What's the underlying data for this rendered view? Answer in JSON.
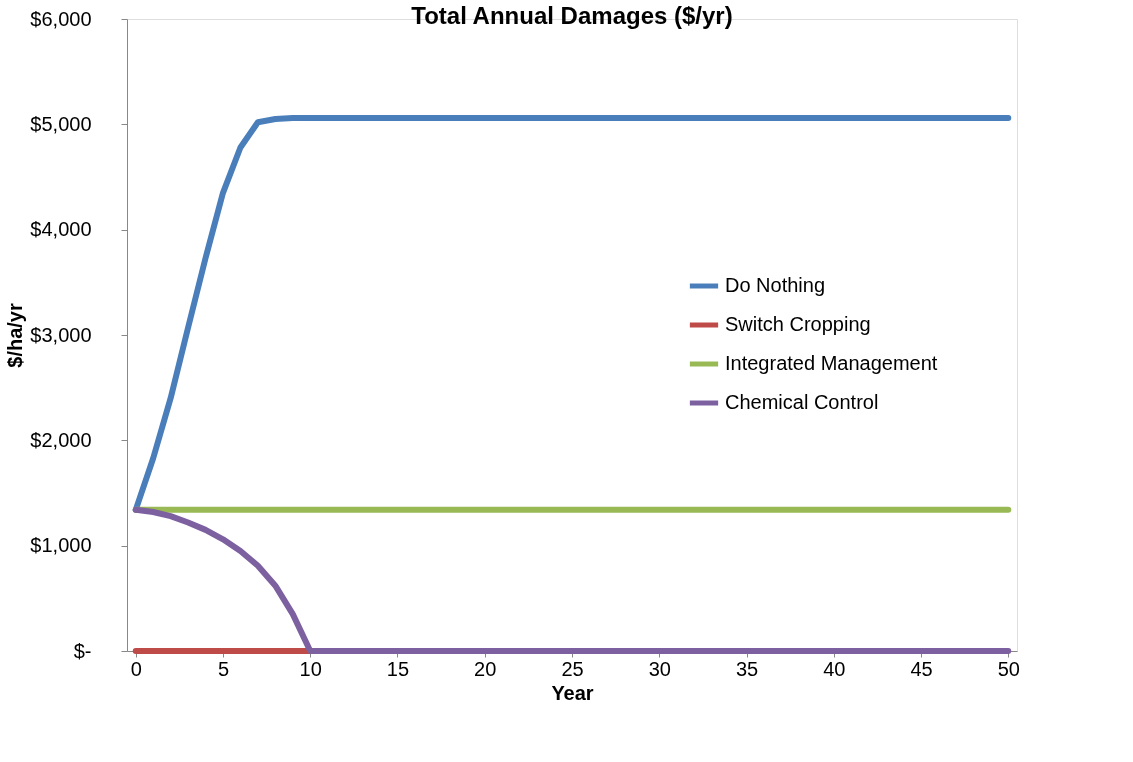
{
  "chart_data": {
    "type": "line",
    "title": "Total Annual Damages ($/yr)",
    "xlabel": "Year",
    "ylabel": "$/ha/yr",
    "series": [
      {
        "name": "Do Nothing",
        "color": "#4a7ebb",
        "x": [
          0,
          1,
          2,
          3,
          4,
          5,
          6,
          7,
          8,
          9,
          10,
          15,
          20,
          30,
          40,
          50
        ],
        "values": [
          1340,
          1830,
          2400,
          3070,
          3730,
          4350,
          4780,
          5020,
          5050,
          5060,
          5060,
          5060,
          5060,
          5060,
          5060,
          5060
        ]
      },
      {
        "name": "Switch Cropping",
        "color": "#be4b48",
        "x": [
          0,
          10
        ],
        "values": [
          0,
          0
        ]
      },
      {
        "name": "Integrated Management",
        "color": "#98b954",
        "x": [
          0,
          50
        ],
        "values": [
          1340,
          1340
        ]
      },
      {
        "name": "Chemical Control",
        "color": "#7d60a0",
        "x": [
          0,
          1,
          2,
          3,
          4,
          5,
          6,
          7,
          8,
          9,
          10,
          50
        ],
        "values": [
          1340,
          1320,
          1280,
          1220,
          1150,
          1060,
          950,
          810,
          620,
          350,
          0,
          0
        ]
      }
    ],
    "xlim": [
      -0.5,
      50.5
    ],
    "xticks": [
      0,
      5,
      10,
      15,
      20,
      25,
      30,
      35,
      40,
      45,
      50
    ],
    "ylim": [
      0,
      6000
    ],
    "yticks": [
      {
        "value": 0,
        "label": "$-"
      },
      {
        "value": 1000,
        "label": "$1,000"
      },
      {
        "value": 2000,
        "label": "$2,000"
      },
      {
        "value": 3000,
        "label": "$3,000"
      },
      {
        "value": 4000,
        "label": "$4,000"
      },
      {
        "value": 5000,
        "label": "$5,000"
      },
      {
        "value": 6000,
        "label": "$6,000"
      }
    ],
    "grid": false,
    "legend": "right",
    "marker": "none",
    "line_style": "solid"
  }
}
